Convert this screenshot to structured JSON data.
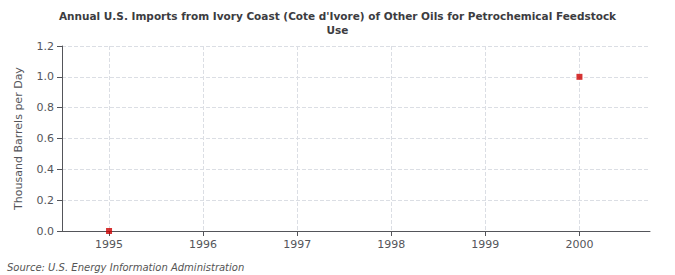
{
  "chart_data": {
    "type": "scatter",
    "title": "Annual U.S. Imports from Ivory Coast (Cote d'Ivore) of Other Oils for Petrochemical Feedstock\nUse",
    "y_label": "Thousand Barrels per Day",
    "annotations": [
      "Source: U.S. Energy Information Administration"
    ],
    "x": [
      1995,
      2000
    ],
    "values": [
      0,
      1
    ],
    "color": "#cc0000",
    "marker": "square",
    "xlim": [
      1994.5,
      2000.75
    ],
    "xticks": [
      1995,
      1996,
      1997,
      1998,
      1999,
      2000
    ],
    "ylim": [
      0,
      1.2
    ],
    "yticks": [
      {
        "value": 0,
        "label": "0.0"
      },
      0.2,
      0.4,
      0.6,
      0.8,
      {
        "value": 1,
        "label": "1.0"
      },
      1.2
    ],
    "grid": true
  }
}
